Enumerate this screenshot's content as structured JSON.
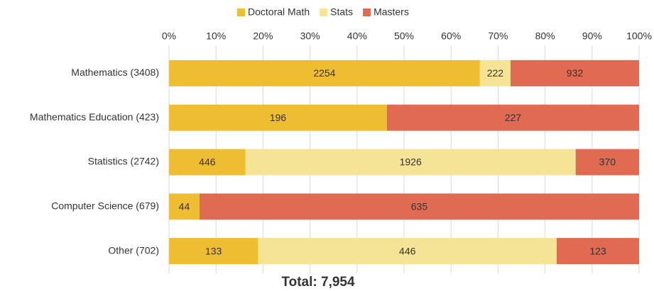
{
  "chart_data": {
    "type": "bar_percent_stacked",
    "orientation": "horizontal",
    "categories": [
      "Mathematics (3408)",
      "Mathematics Education (423)",
      "Statistics (2742)",
      "Computer Science (679)",
      "Other (702)"
    ],
    "series": [
      {
        "name": "Doctoral Math",
        "color": "#efbd32",
        "values": [
          2254,
          196,
          446,
          44,
          133
        ]
      },
      {
        "name": "Stats",
        "color": "#f5e495",
        "values": [
          222,
          null,
          1926,
          null,
          446
        ]
      },
      {
        "name": "Masters",
        "color": "#e06a52",
        "values": [
          932,
          227,
          370,
          635,
          123
        ]
      }
    ],
    "xlim": [
      0,
      100
    ],
    "xticks": [
      {
        "value": 0,
        "label": "0%"
      },
      {
        "value": 10,
        "label": "10%"
      },
      {
        "value": 20,
        "label": "20%"
      },
      {
        "value": 30,
        "label": "30%"
      },
      {
        "value": 40,
        "label": "40%"
      },
      {
        "value": 50,
        "label": "50%"
      },
      {
        "value": 60,
        "label": "60%"
      },
      {
        "value": 70,
        "label": "70%"
      },
      {
        "value": 80,
        "label": "80%"
      },
      {
        "value": 90,
        "label": "90%"
      },
      {
        "value": 100,
        "label": "100%"
      }
    ],
    "grid": true,
    "legend": "top",
    "annotation": "Total: 7,954"
  }
}
